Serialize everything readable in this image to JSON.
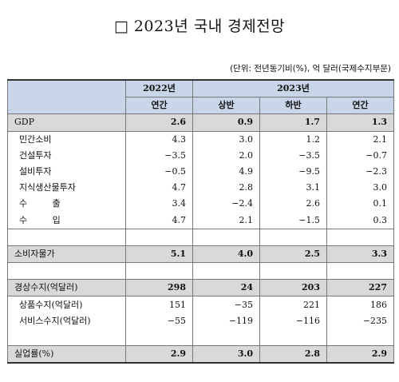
{
  "title": "□ 2023년 국내 경제전망",
  "unit_note": "(단위: 전년동기비(%), 억 달러(국제수지부문)",
  "header": {
    "year_2022": "2022년",
    "year_2023": "2023년",
    "annual": "연간",
    "first_half": "상반",
    "second_half": "하반",
    "annual_2023": "연간"
  },
  "rows": {
    "gdp": {
      "label": "GDP",
      "v": [
        "2.6",
        "0.9",
        "1.7",
        "1.3"
      ]
    },
    "consumption": {
      "label": "민간소비",
      "v": [
        "4.3",
        "3.0",
        "1.2",
        "2.1"
      ]
    },
    "construction": {
      "label": "건설투자",
      "v": [
        "−3.5",
        "2.0",
        "−3.5",
        "−0.7"
      ]
    },
    "equipment": {
      "label": "설비투자",
      "v": [
        "−0.5",
        "4.9",
        "−9.5",
        "−2.3"
      ]
    },
    "ip_investment": {
      "label": "지식생산물투자",
      "v": [
        "4.7",
        "2.8",
        "3.1",
        "3.0"
      ]
    },
    "exports": {
      "label": "수 출",
      "v": [
        "3.4",
        "−2.4",
        "2.6",
        "0.1"
      ]
    },
    "imports": {
      "label": "수 입",
      "v": [
        "4.7",
        "2.1",
        "−1.5",
        "0.3"
      ]
    },
    "cpi": {
      "label": "소비자물가",
      "v": [
        "5.1",
        "4.0",
        "2.5",
        "3.3"
      ]
    },
    "current_account": {
      "label": "경상수지(억달러)",
      "v": [
        "298",
        "24",
        "203",
        "227"
      ]
    },
    "goods_balance": {
      "label": "상품수지(억달러)",
      "v": [
        "151",
        "−35",
        "221",
        "186"
      ]
    },
    "services_balance": {
      "label": "서비스수지(억달러)",
      "v": [
        "−55",
        "−119",
        "−116",
        "−235"
      ]
    },
    "unemployment": {
      "label": "실업률(%)",
      "v": [
        "2.9",
        "3.0",
        "2.8",
        "2.9"
      ]
    }
  }
}
